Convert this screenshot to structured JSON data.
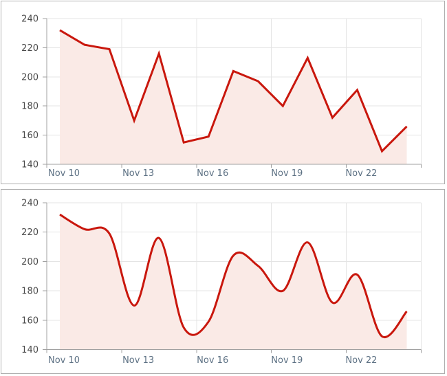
{
  "colors": {
    "line": "#c9170d",
    "fill": "#faeae6",
    "grid": "#e4e4e4",
    "axis": "#a0a0a0",
    "tick": "#a0a0a0",
    "y_label_color": "#4a4a4a",
    "x_label_color": "#5d7184",
    "panel_border": "#aeaeae",
    "background": "#ffffff"
  },
  "chart_data": [
    {
      "type": "area",
      "line_shape": "linear",
      "x": [
        "Nov 10",
        "Nov 11",
        "Nov 12",
        "Nov 13",
        "Nov 14",
        "Nov 15",
        "Nov 16",
        "Nov 17",
        "Nov 18",
        "Nov 19",
        "Nov 20",
        "Nov 21",
        "Nov 22",
        "Nov 23",
        "Nov 24"
      ],
      "values": [
        232,
        222,
        219,
        170,
        216,
        155,
        159,
        204,
        197,
        180,
        213,
        172,
        191,
        149,
        166
      ],
      "x_tick_labels": [
        "Nov 10",
        "Nov 13",
        "Nov 16",
        "Nov 19",
        "Nov 22"
      ],
      "x_tick_every": 3,
      "y_ticks": [
        140,
        160,
        180,
        200,
        220,
        240
      ],
      "ylim": [
        140,
        240
      ],
      "grid": true,
      "legend": false
    },
    {
      "type": "area",
      "line_shape": "spline",
      "x": [
        "Nov 10",
        "Nov 11",
        "Nov 12",
        "Nov 13",
        "Nov 14",
        "Nov 15",
        "Nov 16",
        "Nov 17",
        "Nov 18",
        "Nov 19",
        "Nov 20",
        "Nov 21",
        "Nov 22",
        "Nov 23",
        "Nov 24"
      ],
      "values": [
        232,
        222,
        219,
        170,
        216,
        155,
        159,
        204,
        197,
        180,
        213,
        172,
        191,
        149,
        166
      ],
      "x_tick_labels": [
        "Nov 10",
        "Nov 13",
        "Nov 16",
        "Nov 19",
        "Nov 22"
      ],
      "x_tick_every": 3,
      "y_ticks": [
        140,
        160,
        180,
        200,
        220,
        240
      ],
      "ylim": [
        140,
        240
      ],
      "grid": true,
      "legend": false
    }
  ]
}
